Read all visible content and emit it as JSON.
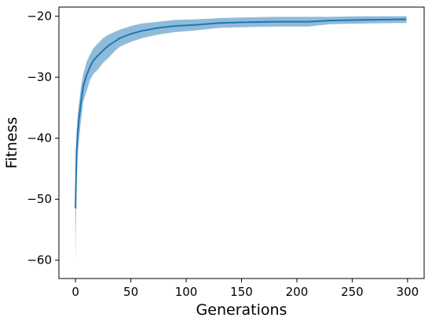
{
  "chart_data": {
    "type": "line",
    "title": "",
    "xlabel": "Generations",
    "ylabel": "Fitness",
    "xlim": [
      -15,
      315
    ],
    "ylim": [
      -63,
      -18.5
    ],
    "xticks": [
      0,
      50,
      100,
      150,
      200,
      250,
      300
    ],
    "xtick_labels": [
      "0",
      "50",
      "100",
      "150",
      "200",
      "250",
      "300"
    ],
    "yticks": [
      -60,
      -50,
      -40,
      -30,
      -20
    ],
    "ytick_labels": [
      "−60",
      "−50",
      "−40",
      "−30",
      "−20"
    ],
    "grid": false,
    "legend": "none",
    "series": [
      {
        "color": "#1f77b4",
        "band_color": "#1f77b4",
        "band_opacity": 0.5,
        "points": [
          {
            "x": 0,
            "y": -51.5,
            "lo": -60.5,
            "hi": -46
          },
          {
            "x": 1,
            "y": -42,
            "lo": -47,
            "hi": -39
          },
          {
            "x": 2,
            "y": -39,
            "lo": -43,
            "hi": -36
          },
          {
            "x": 3,
            "y": -37,
            "lo": -40.5,
            "hi": -34.5
          },
          {
            "x": 5,
            "y": -34,
            "lo": -37,
            "hi": -31.5
          },
          {
            "x": 7,
            "y": -31.5,
            "lo": -34,
            "hi": -29.5
          },
          {
            "x": 10,
            "y": -29.7,
            "lo": -32.3,
            "hi": -27.5
          },
          {
            "x": 13,
            "y": -28.3,
            "lo": -30.5,
            "hi": -26.3
          },
          {
            "x": 16,
            "y": -27.3,
            "lo": -29.5,
            "hi": -25.3
          },
          {
            "x": 20,
            "y": -26.5,
            "lo": -28.8,
            "hi": -24.5
          },
          {
            "x": 25,
            "y": -25.6,
            "lo": -27.6,
            "hi": -23.6
          },
          {
            "x": 30,
            "y": -24.8,
            "lo": -26.8,
            "hi": -23
          },
          {
            "x": 35,
            "y": -24.2,
            "lo": -25.8,
            "hi": -22.6
          },
          {
            "x": 40,
            "y": -23.6,
            "lo": -25,
            "hi": -22.2
          },
          {
            "x": 50,
            "y": -22.9,
            "lo": -24.2,
            "hi": -21.6
          },
          {
            "x": 60,
            "y": -22.4,
            "lo": -23.6,
            "hi": -21.2
          },
          {
            "x": 75,
            "y": -21.9,
            "lo": -23,
            "hi": -20.9
          },
          {
            "x": 90,
            "y": -21.6,
            "lo": -22.6,
            "hi": -20.6
          },
          {
            "x": 110,
            "y": -21.4,
            "lo": -22.3,
            "hi": -20.5
          },
          {
            "x": 130,
            "y": -21.1,
            "lo": -21.9,
            "hi": -20.3
          },
          {
            "x": 150,
            "y": -21,
            "lo": -21.8,
            "hi": -20.2
          },
          {
            "x": 180,
            "y": -20.9,
            "lo": -21.7,
            "hi": -20.1
          },
          {
            "x": 210,
            "y": -20.9,
            "lo": -21.7,
            "hi": -20.1
          },
          {
            "x": 230,
            "y": -20.7,
            "lo": -21.3,
            "hi": -20.1
          },
          {
            "x": 260,
            "y": -20.6,
            "lo": -21.2,
            "hi": -20
          },
          {
            "x": 299,
            "y": -20.5,
            "lo": -21.1,
            "hi": -20
          }
        ]
      }
    ]
  }
}
